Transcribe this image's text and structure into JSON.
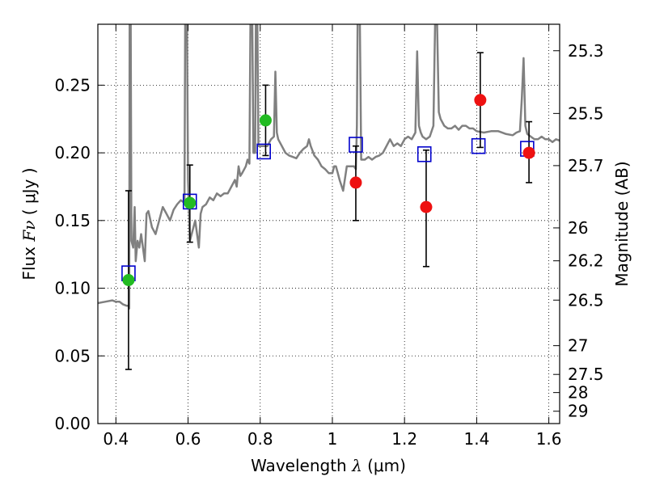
{
  "chart_data": {
    "type": "scatter",
    "title": "",
    "xlabel": {
      "prefix": "Wavelength  ",
      "symbol": "λ",
      "suffix": " (μm)"
    },
    "ylabel": {
      "prefix": "Flux  ",
      "symbol": "Fν",
      "suffix": "  ( μJy )"
    },
    "y2label": "Magnitude (AB)",
    "xlim": [
      0.35,
      1.63
    ],
    "ylim": [
      0.0,
      0.295
    ],
    "grid": true,
    "grid_style": "dotted",
    "x_ticks": [
      {
        "value": 0.4,
        "label": "0.4"
      },
      {
        "value": 0.6,
        "label": "0.6"
      },
      {
        "value": 0.8,
        "label": "0.8"
      },
      {
        "value": 1.0,
        "label": "1"
      },
      {
        "value": 1.2,
        "label": "1.2"
      },
      {
        "value": 1.4,
        "label": "1.4"
      },
      {
        "value": 1.6,
        "label": "1.6"
      }
    ],
    "y_ticks": [
      {
        "value": 0.0,
        "label": "0.00"
      },
      {
        "value": 0.05,
        "label": "0.05"
      },
      {
        "value": 0.1,
        "label": "0.10"
      },
      {
        "value": 0.15,
        "label": "0.15"
      },
      {
        "value": 0.2,
        "label": "0.20"
      },
      {
        "value": 0.25,
        "label": "0.25"
      }
    ],
    "magnitude_ticks": [
      {
        "mag": 25.3,
        "label": "25.3"
      },
      {
        "mag": 25.5,
        "label": "25.5"
      },
      {
        "mag": 25.7,
        "label": "25.7"
      },
      {
        "mag": 26.0,
        "label": "26"
      },
      {
        "mag": 26.2,
        "label": "26.2"
      },
      {
        "mag": 26.5,
        "label": "26.5"
      },
      {
        "mag": 27.0,
        "label": "27"
      },
      {
        "mag": 27.5,
        "label": "27.5"
      },
      {
        "mag": 28.0,
        "label": "28"
      },
      {
        "mag": 29.0,
        "label": "29"
      }
    ],
    "series": [
      {
        "kind": "line",
        "color": "#808080",
        "points": [
          [
            0.35,
            0.089
          ],
          [
            0.37,
            0.09
          ],
          [
            0.39,
            0.091
          ],
          [
            0.4,
            0.09
          ],
          [
            0.41,
            0.09
          ],
          [
            0.42,
            0.088
          ],
          [
            0.43,
            0.087
          ],
          [
            0.435,
            0.087
          ],
          [
            0.437,
            0.085
          ],
          [
            0.438,
            0.3
          ],
          [
            0.441,
            0.3
          ],
          [
            0.443,
            0.135
          ],
          [
            0.448,
            0.13
          ],
          [
            0.452,
            0.16
          ],
          [
            0.455,
            0.12
          ],
          [
            0.46,
            0.135
          ],
          [
            0.465,
            0.13
          ],
          [
            0.47,
            0.14
          ],
          [
            0.48,
            0.12
          ],
          [
            0.485,
            0.155
          ],
          [
            0.49,
            0.157
          ],
          [
            0.5,
            0.145
          ],
          [
            0.51,
            0.14
          ],
          [
            0.52,
            0.15
          ],
          [
            0.53,
            0.16
          ],
          [
            0.54,
            0.155
          ],
          [
            0.55,
            0.15
          ],
          [
            0.56,
            0.158
          ],
          [
            0.57,
            0.162
          ],
          [
            0.58,
            0.165
          ],
          [
            0.59,
            0.163
          ],
          [
            0.592,
            0.3
          ],
          [
            0.597,
            0.3
          ],
          [
            0.6,
            0.18
          ],
          [
            0.605,
            0.135
          ],
          [
            0.61,
            0.14
          ],
          [
            0.615,
            0.145
          ],
          [
            0.62,
            0.15
          ],
          [
            0.63,
            0.13
          ],
          [
            0.635,
            0.155
          ],
          [
            0.64,
            0.16
          ],
          [
            0.65,
            0.162
          ],
          [
            0.66,
            0.167
          ],
          [
            0.67,
            0.165
          ],
          [
            0.68,
            0.17
          ],
          [
            0.69,
            0.168
          ],
          [
            0.7,
            0.17
          ],
          [
            0.71,
            0.17
          ],
          [
            0.72,
            0.175
          ],
          [
            0.73,
            0.18
          ],
          [
            0.735,
            0.175
          ],
          [
            0.74,
            0.19
          ],
          [
            0.745,
            0.183
          ],
          [
            0.75,
            0.185
          ],
          [
            0.76,
            0.19
          ],
          [
            0.765,
            0.195
          ],
          [
            0.77,
            0.192
          ],
          [
            0.773,
            0.3
          ],
          [
            0.778,
            0.3
          ],
          [
            0.781,
            0.2
          ],
          [
            0.786,
            0.2
          ],
          [
            0.788,
            0.3
          ],
          [
            0.792,
            0.3
          ],
          [
            0.795,
            0.205
          ],
          [
            0.8,
            0.205
          ],
          [
            0.81,
            0.205
          ],
          [
            0.82,
            0.205
          ],
          [
            0.83,
            0.21
          ],
          [
            0.838,
            0.212
          ],
          [
            0.842,
            0.26
          ],
          [
            0.846,
            0.215
          ],
          [
            0.85,
            0.21
          ],
          [
            0.86,
            0.205
          ],
          [
            0.87,
            0.2
          ],
          [
            0.88,
            0.198
          ],
          [
            0.89,
            0.197
          ],
          [
            0.9,
            0.196
          ],
          [
            0.91,
            0.2
          ],
          [
            0.92,
            0.203
          ],
          [
            0.93,
            0.205
          ],
          [
            0.935,
            0.21
          ],
          [
            0.94,
            0.205
          ],
          [
            0.95,
            0.198
          ],
          [
            0.96,
            0.195
          ],
          [
            0.97,
            0.19
          ],
          [
            0.98,
            0.188
          ],
          [
            0.99,
            0.185
          ],
          [
            1.0,
            0.185
          ],
          [
            1.005,
            0.19
          ],
          [
            1.01,
            0.19
          ],
          [
            1.015,
            0.185
          ],
          [
            1.02,
            0.18
          ],
          [
            1.03,
            0.172
          ],
          [
            1.04,
            0.19
          ],
          [
            1.05,
            0.19
          ],
          [
            1.06,
            0.19
          ],
          [
            1.065,
            0.188
          ],
          [
            1.068,
            0.22
          ],
          [
            1.07,
            0.3
          ],
          [
            1.076,
            0.3
          ],
          [
            1.08,
            0.195
          ],
          [
            1.09,
            0.195
          ],
          [
            1.1,
            0.197
          ],
          [
            1.11,
            0.195
          ],
          [
            1.12,
            0.197
          ],
          [
            1.13,
            0.198
          ],
          [
            1.14,
            0.2
          ],
          [
            1.15,
            0.205
          ],
          [
            1.16,
            0.21
          ],
          [
            1.17,
            0.205
          ],
          [
            1.18,
            0.207
          ],
          [
            1.19,
            0.205
          ],
          [
            1.2,
            0.21
          ],
          [
            1.21,
            0.212
          ],
          [
            1.22,
            0.21
          ],
          [
            1.23,
            0.215
          ],
          [
            1.235,
            0.275
          ],
          [
            1.24,
            0.22
          ],
          [
            1.245,
            0.215
          ],
          [
            1.25,
            0.212
          ],
          [
            1.26,
            0.21
          ],
          [
            1.27,
            0.212
          ],
          [
            1.28,
            0.22
          ],
          [
            1.285,
            0.3
          ],
          [
            1.29,
            0.3
          ],
          [
            1.295,
            0.23
          ],
          [
            1.3,
            0.225
          ],
          [
            1.31,
            0.22
          ],
          [
            1.32,
            0.218
          ],
          [
            1.33,
            0.218
          ],
          [
            1.34,
            0.22
          ],
          [
            1.35,
            0.217
          ],
          [
            1.36,
            0.22
          ],
          [
            1.37,
            0.22
          ],
          [
            1.38,
            0.218
          ],
          [
            1.39,
            0.218
          ],
          [
            1.4,
            0.216
          ],
          [
            1.42,
            0.215
          ],
          [
            1.44,
            0.216
          ],
          [
            1.46,
            0.216
          ],
          [
            1.48,
            0.214
          ],
          [
            1.5,
            0.213
          ],
          [
            1.51,
            0.215
          ],
          [
            1.52,
            0.216
          ],
          [
            1.525,
            0.24
          ],
          [
            1.53,
            0.27
          ],
          [
            1.535,
            0.22
          ],
          [
            1.54,
            0.214
          ],
          [
            1.55,
            0.212
          ],
          [
            1.56,
            0.21
          ],
          [
            1.57,
            0.21
          ],
          [
            1.58,
            0.212
          ],
          [
            1.59,
            0.21
          ],
          [
            1.6,
            0.21
          ],
          [
            1.61,
            0.208
          ],
          [
            1.62,
            0.21
          ],
          [
            1.63,
            0.209
          ]
        ]
      },
      {
        "kind": "model_points",
        "marker": "open-square",
        "color": "#0000cc",
        "x": [
          0.435,
          0.605,
          0.81,
          1.065,
          1.255,
          1.405,
          1.54
        ],
        "y": [
          0.111,
          0.164,
          0.201,
          0.206,
          0.199,
          0.205,
          0.203
        ]
      },
      {
        "kind": "observed_points",
        "color": "#22bb22",
        "x": [
          0.435,
          0.605,
          0.815
        ],
        "y": [
          0.106,
          0.163,
          0.224
        ],
        "err_low": [
          0.04,
          0.134,
          0.198
        ],
        "err_high": [
          0.172,
          0.191,
          0.25
        ]
      },
      {
        "kind": "observed_points",
        "color": "#ee1111",
        "x": [
          1.065,
          1.26,
          1.41,
          1.545
        ],
        "y": [
          0.178,
          0.16,
          0.239,
          0.2
        ],
        "err_low": [
          0.15,
          0.116,
          0.204,
          0.178
        ],
        "err_high": [
          0.205,
          0.202,
          0.274,
          0.223
        ]
      }
    ]
  }
}
